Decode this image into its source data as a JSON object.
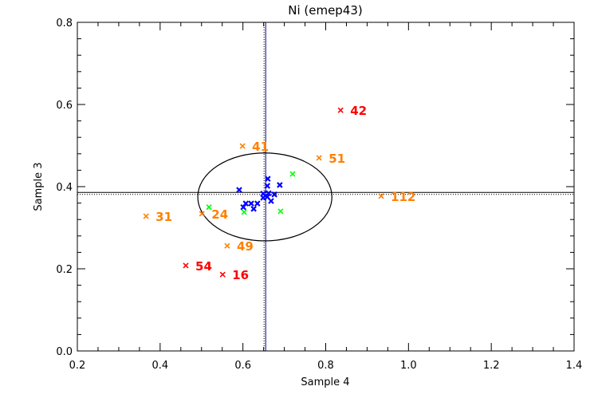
{
  "chart_data": {
    "type": "scatter",
    "title": "Ni (emep43)",
    "xlabel": "Sample 4",
    "ylabel": "Sample 3",
    "xlim": [
      0.2,
      1.4
    ],
    "ylim": [
      0.0,
      0.8
    ],
    "xticks": [
      "0.2",
      "0.4",
      "0.6",
      "0.8",
      "1.0",
      "1.2",
      "1.4"
    ],
    "yticks": [
      "0.0",
      "0.2",
      "0.4",
      "0.6",
      "0.8"
    ],
    "grid": false,
    "reference_lines": {
      "vertical_solid": 0.655,
      "vertical_dotted": 0.651,
      "horizontal_solid": 0.386,
      "horizontal_dotted": 0.381
    },
    "ellipse": {
      "cx": 0.653,
      "cy": 0.375,
      "rx": 0.162,
      "ry": 0.107
    },
    "colors": {
      "red": "#ff0000",
      "orange": "#ff8000",
      "green": "#00ff00",
      "blue": "#0000ff",
      "axis": "#000000"
    },
    "series": [
      {
        "name": "red",
        "color": "#ff0000",
        "points": [
          {
            "x": 0.836,
            "y": 0.586,
            "label": "42"
          },
          {
            "x": 0.462,
            "y": 0.208,
            "label": "54"
          },
          {
            "x": 0.551,
            "y": 0.186,
            "label": "16"
          }
        ]
      },
      {
        "name": "orange",
        "color": "#ff8000",
        "points": [
          {
            "x": 0.599,
            "y": 0.499,
            "label": "41"
          },
          {
            "x": 0.784,
            "y": 0.47,
            "label": "51"
          },
          {
            "x": 0.934,
            "y": 0.377,
            "label": "112"
          },
          {
            "x": 0.366,
            "y": 0.328,
            "label": "31"
          },
          {
            "x": 0.501,
            "y": 0.334,
            "label": "24"
          },
          {
            "x": 0.562,
            "y": 0.256,
            "label": "49"
          }
        ]
      },
      {
        "name": "green",
        "color": "#00ff00",
        "points": [
          {
            "x": 0.72,
            "y": 0.431
          },
          {
            "x": 0.518,
            "y": 0.35
          },
          {
            "x": 0.603,
            "y": 0.338
          },
          {
            "x": 0.691,
            "y": 0.34
          }
        ]
      },
      {
        "name": "blue",
        "color": "#0000ff",
        "points": [
          {
            "x": 0.66,
            "y": 0.419
          },
          {
            "x": 0.659,
            "y": 0.402
          },
          {
            "x": 0.689,
            "y": 0.404
          },
          {
            "x": 0.591,
            "y": 0.392
          },
          {
            "x": 0.649,
            "y": 0.383
          },
          {
            "x": 0.662,
            "y": 0.384
          },
          {
            "x": 0.676,
            "y": 0.381
          },
          {
            "x": 0.668,
            "y": 0.365
          },
          {
            "x": 0.649,
            "y": 0.373
          },
          {
            "x": 0.607,
            "y": 0.359
          },
          {
            "x": 0.62,
            "y": 0.359
          },
          {
            "x": 0.635,
            "y": 0.359
          },
          {
            "x": 0.601,
            "y": 0.35
          },
          {
            "x": 0.626,
            "y": 0.346
          },
          {
            "x": 0.659,
            "y": 0.375
          }
        ]
      }
    ]
  }
}
